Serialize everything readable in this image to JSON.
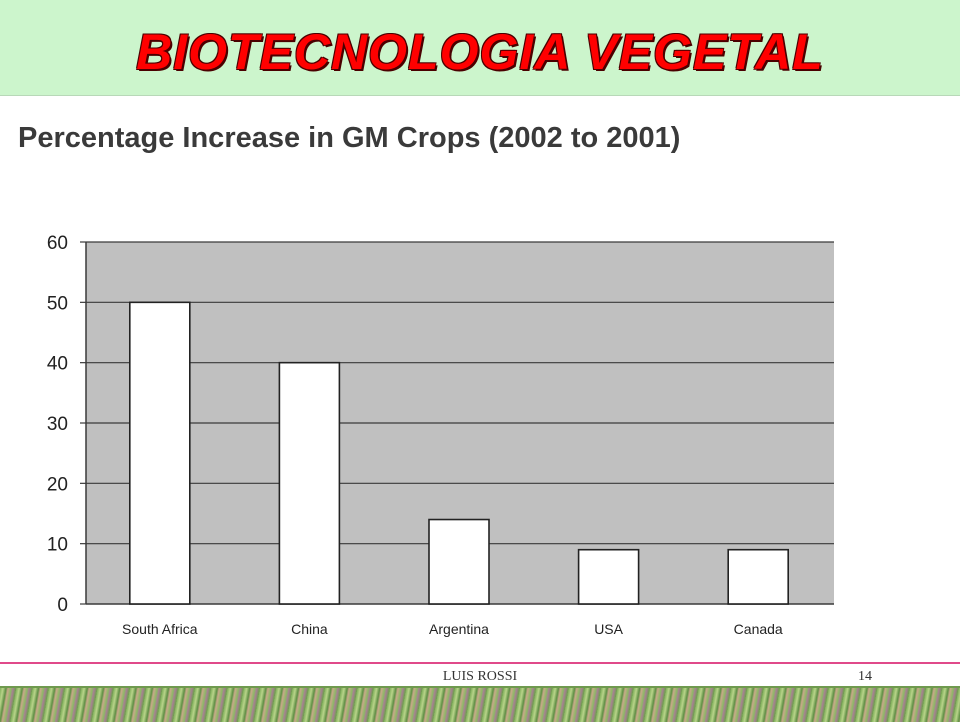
{
  "slide": {
    "title": "BIOTECNOLOGIA  VEGETAL",
    "footer_author": "LUIS ROSSI",
    "page_number": "14"
  },
  "colors": {
    "header_bg": "#ccf5cc",
    "title_red": "#ff0000",
    "plot_bg": "#c0c0c0",
    "bar_fill": "#ffffff",
    "footer_line": "#e04a8a"
  },
  "chart_data": {
    "type": "bar",
    "title": "Percentage Increase in GM Crops (2002 to 2001)",
    "categories": [
      "South Africa",
      "China",
      "Argentina",
      "USA",
      "Canada"
    ],
    "values": [
      50,
      40,
      14,
      9,
      9
    ],
    "xlabel": "",
    "ylabel": "",
    "ylim": [
      0,
      60
    ],
    "yticks": [
      0,
      10,
      20,
      30,
      40,
      50,
      60
    ],
    "grid": true,
    "legend": "none"
  }
}
